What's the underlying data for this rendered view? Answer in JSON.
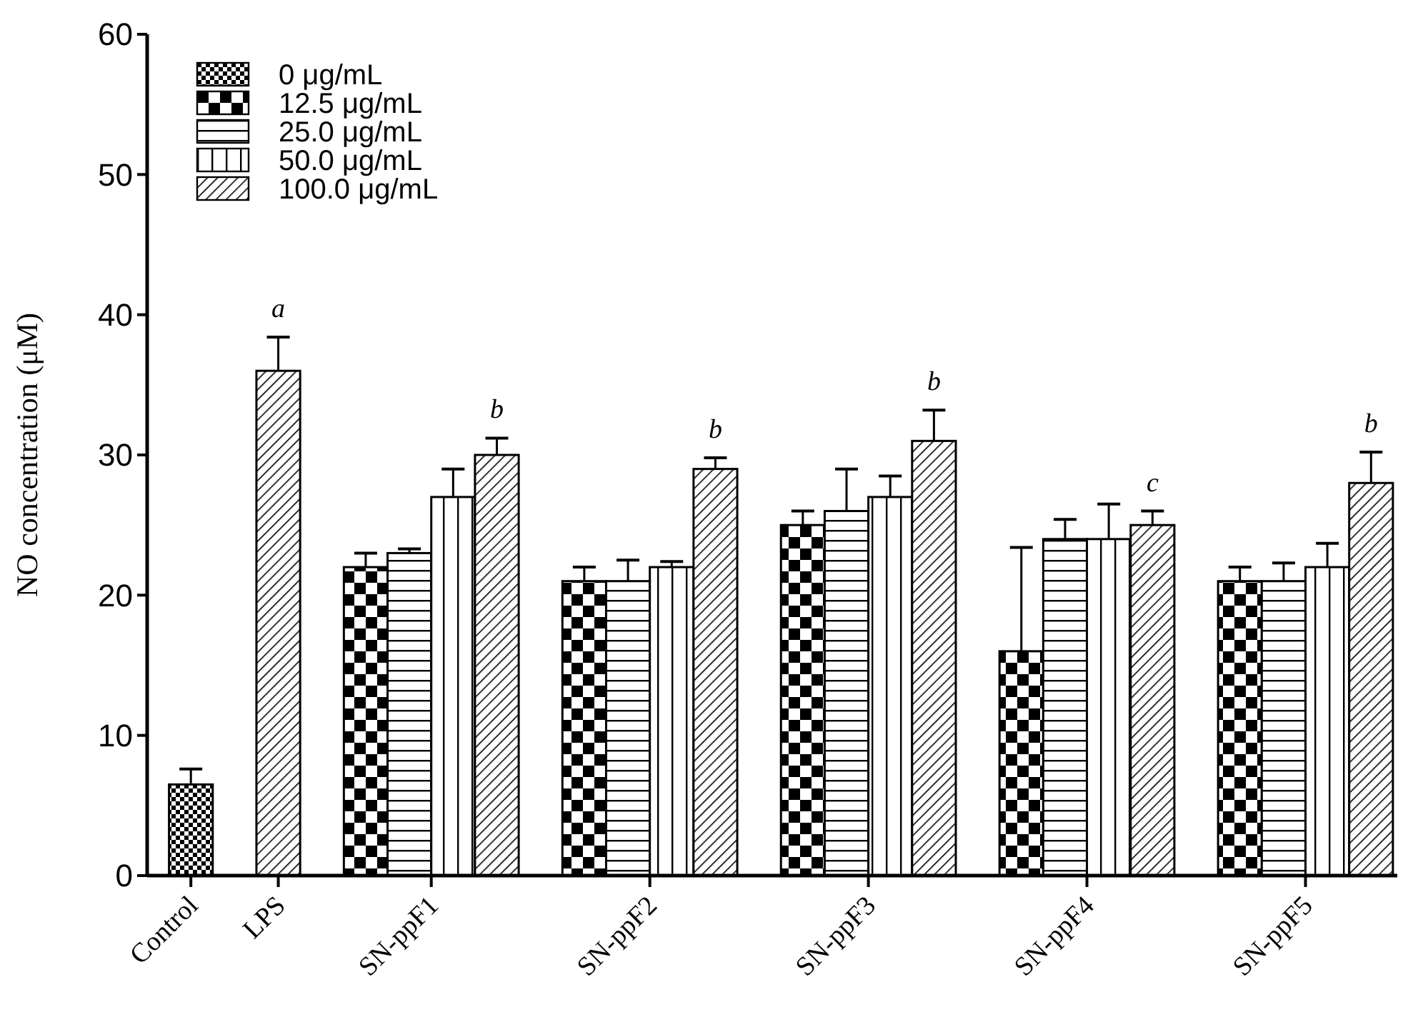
{
  "chart_data": {
    "type": "bar",
    "ylabel": "NO concentration (μM)",
    "categories": [
      "Control",
      "LPS",
      "SN-ppF1",
      "SN-ppF2",
      "SN-ppF3",
      "SN-ppF4",
      "SN-ppF5"
    ],
    "series": [
      {
        "name": "0 μg/mL",
        "color": "#000000",
        "values": [
          6.5,
          null,
          null,
          null,
          null,
          null,
          null
        ],
        "errors": [
          1.1,
          null,
          null,
          null,
          null,
          null,
          null
        ]
      },
      {
        "name": "12.5 μg/mL",
        "color": "#000000",
        "values": [
          null,
          null,
          22,
          21,
          25,
          16,
          21
        ],
        "errors": [
          null,
          null,
          1,
          1,
          1,
          7.4,
          1
        ]
      },
      {
        "name": "25.0 μg/mL",
        "color": "#000000",
        "values": [
          null,
          null,
          23,
          21,
          26,
          24,
          21
        ],
        "errors": [
          null,
          null,
          0.3,
          1.5,
          3,
          1.4,
          1.3
        ]
      },
      {
        "name": "50.0 μg/mL",
        "color": "#000000",
        "values": [
          null,
          null,
          27,
          22,
          27,
          24,
          22
        ],
        "errors": [
          null,
          null,
          2,
          0.4,
          1.5,
          2.5,
          1.7
        ]
      },
      {
        "name": "100.0 μg/mL",
        "color": "#000000",
        "values": [
          null,
          36,
          30,
          29,
          31,
          25,
          28
        ],
        "errors": [
          null,
          2.4,
          1.2,
          0.8,
          2.2,
          1,
          2.2
        ]
      }
    ],
    "annotations": [
      "a",
      "b",
      "b",
      "b",
      "c",
      "b"
    ],
    "ylim": [
      0,
      60
    ],
    "yticks": [
      0,
      10,
      20,
      30,
      40,
      50,
      60
    ],
    "grid": false,
    "legend": "top left"
  }
}
